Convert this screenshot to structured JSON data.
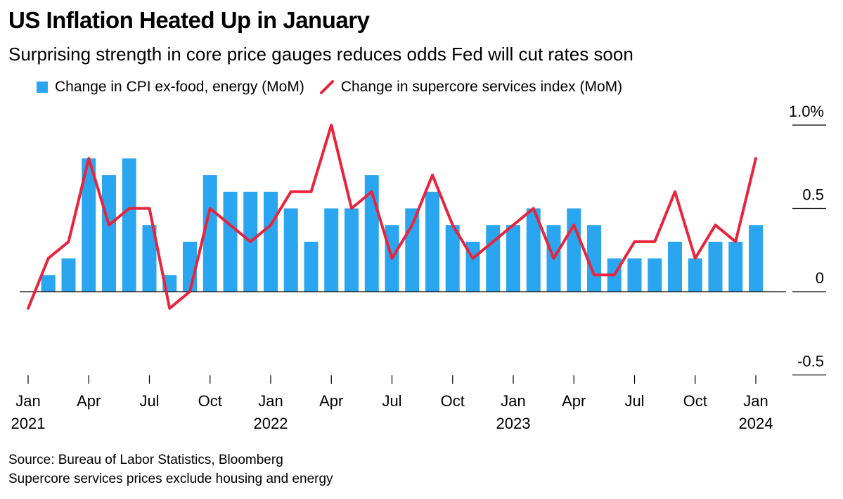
{
  "title": "US Inflation Heated Up in January",
  "subtitle": "Surprising strength in core price gauges reduces odds Fed will cut rates soon",
  "footnotes": {
    "source": "Source: Bureau of Labor Statistics, Bloomberg",
    "note": "Supercore services prices exclude housing and energy"
  },
  "colors": {
    "bar": "#2aa6f0",
    "line": "#e8243c",
    "axis": "#000000"
  },
  "chart_data": {
    "type": "bar",
    "x": [
      "2021-01",
      "2021-02",
      "2021-03",
      "2021-04",
      "2021-05",
      "2021-06",
      "2021-07",
      "2021-08",
      "2021-09",
      "2021-10",
      "2021-11",
      "2021-12",
      "2022-01",
      "2022-02",
      "2022-03",
      "2022-04",
      "2022-05",
      "2022-06",
      "2022-07",
      "2022-08",
      "2022-09",
      "2022-10",
      "2022-11",
      "2022-12",
      "2023-01",
      "2023-02",
      "2023-03",
      "2023-04",
      "2023-05",
      "2023-06",
      "2023-07",
      "2023-08",
      "2023-09",
      "2023-10",
      "2023-11",
      "2023-12",
      "2024-01"
    ],
    "series": [
      {
        "name": "Change in CPI ex-food, energy (MoM)",
        "type": "bar",
        "values": [
          0.0,
          0.1,
          0.2,
          0.8,
          0.7,
          0.8,
          0.4,
          0.1,
          0.3,
          0.7,
          0.6,
          0.6,
          0.6,
          0.5,
          0.3,
          0.5,
          0.5,
          0.7,
          0.4,
          0.5,
          0.6,
          0.4,
          0.3,
          0.4,
          0.4,
          0.5,
          0.4,
          0.5,
          0.4,
          0.2,
          0.2,
          0.2,
          0.3,
          0.2,
          0.3,
          0.3,
          0.4
        ]
      },
      {
        "name": "Change in supercore services index (MoM)",
        "type": "line",
        "values": [
          -0.1,
          0.2,
          0.3,
          0.8,
          0.4,
          0.5,
          0.5,
          -0.1,
          0.0,
          0.5,
          0.4,
          0.3,
          0.4,
          0.6,
          0.6,
          1.0,
          0.5,
          0.6,
          0.2,
          0.4,
          0.7,
          0.4,
          0.2,
          0.3,
          0.4,
          0.5,
          0.2,
          0.4,
          0.1,
          0.1,
          0.3,
          0.3,
          0.6,
          0.2,
          0.4,
          0.3,
          0.8
        ]
      }
    ],
    "ylim": [
      -0.5,
      1.0
    ],
    "y_ticks": [
      {
        "value": 1.0,
        "label": "1.0%"
      },
      {
        "value": 0.5,
        "label": "0.5"
      },
      {
        "value": 0,
        "label": "0"
      },
      {
        "value": -0.5,
        "label": "-0.5"
      }
    ],
    "x_ticks": [
      {
        "index": 0,
        "month": "Jan",
        "year": "2021"
      },
      {
        "index": 3,
        "month": "Apr",
        "year": ""
      },
      {
        "index": 6,
        "month": "Jul",
        "year": ""
      },
      {
        "index": 9,
        "month": "Oct",
        "year": ""
      },
      {
        "index": 12,
        "month": "Jan",
        "year": "2022"
      },
      {
        "index": 15,
        "month": "Apr",
        "year": ""
      },
      {
        "index": 18,
        "month": "Jul",
        "year": ""
      },
      {
        "index": 21,
        "month": "Oct",
        "year": ""
      },
      {
        "index": 24,
        "month": "Jan",
        "year": "2023"
      },
      {
        "index": 27,
        "month": "Apr",
        "year": ""
      },
      {
        "index": 30,
        "month": "Jul",
        "year": ""
      },
      {
        "index": 33,
        "month": "Oct",
        "year": ""
      },
      {
        "index": 36,
        "month": "Jan",
        "year": "2024"
      }
    ],
    "legend_position": "top-left",
    "grid": false
  }
}
